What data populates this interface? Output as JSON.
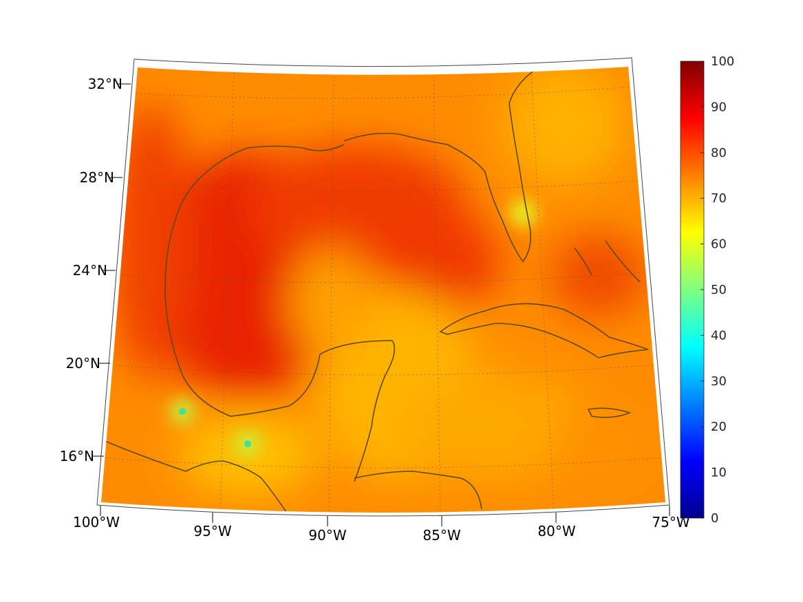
{
  "map": {
    "lat_labels": [
      "32°N",
      "28°N",
      "24°N",
      "20°N",
      "16°N"
    ],
    "lon_labels": [
      "100°W",
      "95°W",
      "90°W",
      "85°W",
      "80°W",
      "75°W"
    ],
    "colors": {
      "coast": "#5a4a10",
      "base": "#ff8c00",
      "hot": "#e82000",
      "warm": "#ffb400"
    }
  },
  "colorbar": {
    "min": 0,
    "max": 100,
    "ticks": [
      "100",
      "90",
      "80",
      "70",
      "60",
      "50",
      "40",
      "30",
      "20",
      "10",
      "0"
    ]
  }
}
